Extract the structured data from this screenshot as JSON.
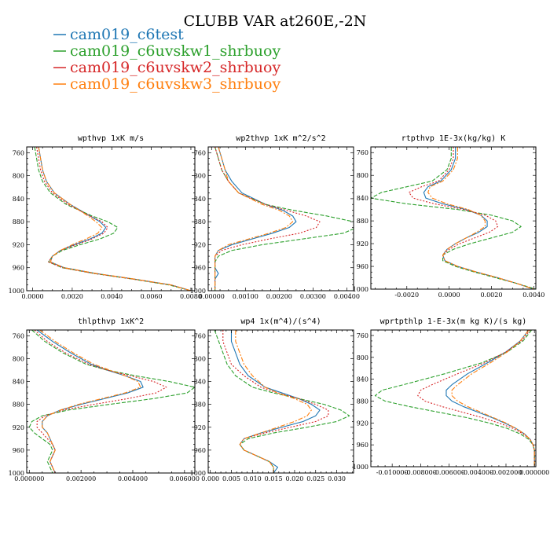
{
  "title": "CLUBB VAR at260E,-2N",
  "colors": {
    "cam019_c6test": "#1f77b4",
    "cam019_c6uvskw1_shrbuoy": "#2ca02c",
    "cam019_c6uvskw2_shrbuoy": "#d62728",
    "cam019_c6uvskw3_shrbuoy": "#ff7f0e"
  },
  "legend": [
    {
      "name": "cam019_c6test",
      "color": "#1f77b4",
      "dash": "solid"
    },
    {
      "name": "cam019_c6uvskw1_shrbuoy",
      "color": "#2ca02c",
      "dash": "dashed"
    },
    {
      "name": "cam019_c6uvskw2_shrbuoy",
      "color": "#d62728",
      "dash": "dotted"
    },
    {
      "name": "cam019_c6uvskw3_shrbuoy",
      "color": "#ff7f0e",
      "dash": "dashdot"
    }
  ],
  "chart_data": [
    {
      "type": "line",
      "title": "wpthvp  1xK m/s",
      "xlim": [
        -0.0003,
        0.0082
      ],
      "ylim": [
        750,
        1000
      ],
      "y_inverted": true,
      "xticks": [
        0,
        0.002,
        0.004,
        0.006,
        0.008
      ],
      "xtick_labels": [
        "0.0000",
        "0.0020",
        "0.0040",
        "0.0060",
        "0.0080"
      ],
      "yticks": [
        760,
        800,
        840,
        880,
        920,
        960,
        1000
      ],
      "ytick_labels": [
        "760",
        "800",
        "840",
        "880",
        "920",
        "960",
        "1000"
      ],
      "y": [
        750,
        770,
        790,
        810,
        830,
        850,
        870,
        880,
        890,
        900,
        910,
        920,
        930,
        940,
        950,
        960,
        970,
        980,
        990,
        1000
      ],
      "series": [
        {
          "name": "cam019_c6test",
          "x": [
            0.0003,
            0.0004,
            0.0005,
            0.0007,
            0.0011,
            0.0019,
            0.0029,
            0.0034,
            0.0037,
            0.0035,
            0.0029,
            0.0021,
            0.0014,
            0.001,
            0.0009,
            0.0016,
            0.0032,
            0.0052,
            0.007,
            0.008
          ]
        },
        {
          "name": "cam019_c6uvskw1_shrbuoy",
          "x": [
            0.0001,
            0.0002,
            0.0003,
            0.0005,
            0.0009,
            0.0017,
            0.003,
            0.0038,
            0.0043,
            0.0041,
            0.0034,
            0.0024,
            0.0015,
            0.001,
            0.0008,
            0.0015,
            0.0031,
            0.0051,
            0.0069,
            0.008
          ]
        },
        {
          "name": "cam019_c6uvskw2_shrbuoy",
          "x": [
            0.0002,
            0.0003,
            0.0004,
            0.0006,
            0.001,
            0.0018,
            0.0029,
            0.0035,
            0.0038,
            0.0036,
            0.003,
            0.0022,
            0.0014,
            0.001,
            0.0008,
            0.0015,
            0.0031,
            0.0051,
            0.007,
            0.008
          ]
        },
        {
          "name": "cam019_c6uvskw3_shrbuoy",
          "x": [
            0.0003,
            0.0004,
            0.0005,
            0.0007,
            0.0011,
            0.0019,
            0.0028,
            0.0032,
            0.0035,
            0.0033,
            0.0027,
            0.002,
            0.0014,
            0.001,
            0.0009,
            0.0016,
            0.0032,
            0.0052,
            0.007,
            0.008
          ]
        }
      ]
    },
    {
      "type": "line",
      "title": "wp2thvp  1xK m^2/s^2",
      "xlim": [
        -0.0001,
        0.0042
      ],
      "ylim": [
        750,
        1000
      ],
      "y_inverted": true,
      "xticks": [
        0,
        0.001,
        0.002,
        0.003,
        0.004
      ],
      "xtick_labels": [
        "0.00000",
        "0.00100",
        "0.00200",
        "0.00300",
        "0.00400"
      ],
      "yticks": [
        760,
        800,
        840,
        880,
        920,
        960,
        1000
      ],
      "ytick_labels": [
        "760",
        "800",
        "840",
        "880",
        "920",
        "960",
        "1000"
      ],
      "y": [
        750,
        770,
        790,
        810,
        830,
        850,
        860,
        870,
        880,
        890,
        900,
        910,
        920,
        930,
        940,
        950,
        960,
        970,
        980,
        990,
        1000
      ],
      "series": [
        {
          "name": "cam019_c6test",
          "x": [
            0.0002,
            0.0003,
            0.0004,
            0.0006,
            0.0009,
            0.0016,
            0.0021,
            0.0024,
            0.0025,
            0.0023,
            0.0018,
            0.0012,
            0.0006,
            0.0002,
            0.0001,
            0.0001,
            0.0001,
            0.0002,
            0.0001,
            0.0001,
            0.0001
          ]
        },
        {
          "name": "cam019_c6uvskw1_shrbuoy",
          "x": [
            0.0001,
            0.0002,
            0.0003,
            0.0005,
            0.0008,
            0.0016,
            0.0024,
            0.0034,
            0.0042,
            0.0043,
            0.0039,
            0.0027,
            0.0015,
            0.0006,
            0.0002,
            0.0001,
            0.0001,
            0.0001,
            0.0001,
            0.0001,
            0.0001
          ]
        },
        {
          "name": "cam019_c6uvskw2_shrbuoy",
          "x": [
            0.0001,
            0.0002,
            0.0003,
            0.0005,
            0.0008,
            0.0016,
            0.0022,
            0.0028,
            0.0032,
            0.0031,
            0.0026,
            0.0017,
            0.0009,
            0.0003,
            0.0001,
            0.0001,
            0.0001,
            0.0001,
            0.0001,
            0.0001,
            0.0001
          ]
        },
        {
          "name": "cam019_c6uvskw3_shrbuoy",
          "x": [
            0.0002,
            0.0003,
            0.0004,
            0.0005,
            0.0008,
            0.0015,
            0.002,
            0.0023,
            0.0024,
            0.0022,
            0.0017,
            0.0011,
            0.0005,
            0.0002,
            0.0001,
            0.0001,
            0.0001,
            0.0001,
            0.0001,
            0.0001,
            0.0001
          ]
        }
      ]
    },
    {
      "type": "line",
      "title": "rtpthvp  1E-3x(kg/kg) K",
      "xlim": [
        -0.0037,
        0.0041
      ],
      "ylim": [
        750,
        1000
      ],
      "y_inverted": true,
      "xticks": [
        -0.002,
        0,
        0.002,
        0.004
      ],
      "xtick_labels": [
        "-0.0020",
        "0.0000",
        "0.0020",
        "0.0040"
      ],
      "yticks": [
        760,
        800,
        840,
        880,
        920,
        960,
        1000
      ],
      "ytick_labels": [
        "760",
        "800",
        "840",
        "880",
        "920",
        "960",
        "1000"
      ],
      "y": [
        750,
        770,
        790,
        810,
        820,
        830,
        840,
        850,
        860,
        870,
        880,
        890,
        900,
        910,
        920,
        930,
        940,
        950,
        960,
        970,
        980,
        990,
        1000
      ],
      "series": [
        {
          "name": "cam019_c6test",
          "x": [
            0.0003,
            0.0003,
            0.0001,
            -0.0004,
            -0.001,
            -0.0012,
            -0.0011,
            -0.0003,
            0.0008,
            0.0015,
            0.0018,
            0.0018,
            0.0014,
            0.0008,
            0.0003,
            -0.0001,
            -0.0003,
            -0.0002,
            0.0004,
            0.0013,
            0.0023,
            0.0032,
            0.004
          ]
        },
        {
          "name": "cam019_c6uvskw1_shrbuoy",
          "x": [
            0.0001,
            0.0001,
            -0.0001,
            -0.0008,
            -0.002,
            -0.0032,
            -0.0037,
            -0.002,
            0.0004,
            0.002,
            0.003,
            0.0034,
            0.003,
            0.002,
            0.001,
            0.0002,
            -0.0003,
            -0.0003,
            0.0003,
            0.0012,
            0.0022,
            0.0032,
            0.0041
          ]
        },
        {
          "name": "cam019_c6uvskw2_shrbuoy",
          "x": [
            0.0002,
            0.0002,
            0.0,
            -0.0005,
            -0.0013,
            -0.0019,
            -0.0017,
            -0.0007,
            0.0007,
            0.0017,
            0.0022,
            0.0023,
            0.0019,
            0.0012,
            0.0005,
            0.0,
            -0.0003,
            -0.0002,
            0.0004,
            0.0013,
            0.0023,
            0.0032,
            0.004
          ]
        },
        {
          "name": "cam019_c6uvskw3_shrbuoy",
          "x": [
            0.0004,
            0.0004,
            0.0002,
            -0.0003,
            -0.0009,
            -0.001,
            -0.0008,
            -0.0001,
            0.0009,
            0.0015,
            0.0017,
            0.0017,
            0.0013,
            0.0008,
            0.0003,
            -0.0001,
            -0.0003,
            -0.0002,
            0.0004,
            0.0013,
            0.0023,
            0.0032,
            0.004
          ]
        }
      ]
    },
    {
      "type": "line",
      "title": "thlpthvp  1xK^2",
      "xlim": [
        -0.0001,
        0.0064
      ],
      "ylim": [
        750,
        1000
      ],
      "y_inverted": true,
      "xticks": [
        0,
        0.002,
        0.004,
        0.006
      ],
      "xtick_labels": [
        "0.000000",
        "0.002000",
        "0.004000",
        "0.006000"
      ],
      "yticks": [
        760,
        800,
        840,
        880,
        920,
        960,
        1000
      ],
      "ytick_labels": [
        "760",
        "800",
        "840",
        "880",
        "920",
        "960",
        "1000"
      ],
      "y": [
        750,
        770,
        790,
        810,
        820,
        830,
        840,
        850,
        860,
        870,
        880,
        890,
        900,
        910,
        920,
        930,
        940,
        950,
        960,
        970,
        980,
        990,
        1000
      ],
      "series": [
        {
          "name": "cam019_c6test",
          "x": [
            0.0003,
            0.0009,
            0.0016,
            0.0024,
            0.003,
            0.0037,
            0.0043,
            0.0044,
            0.0038,
            0.0029,
            0.002,
            0.0012,
            0.0007,
            0.0005,
            0.0005,
            0.0007,
            0.0008,
            0.0009,
            0.001,
            0.0009,
            0.0008,
            0.0009,
            0.001
          ]
        },
        {
          "name": "cam019_c6uvskw1_shrbuoy",
          "x": [
            0.0001,
            0.0006,
            0.0013,
            0.0022,
            0.003,
            0.0041,
            0.0054,
            0.0064,
            0.0061,
            0.0048,
            0.0031,
            0.0015,
            0.0005,
            0.0001,
            0.0,
            0.0002,
            0.0005,
            0.0008,
            0.0009,
            0.0008,
            0.0007,
            0.0008,
            0.0009
          ]
        },
        {
          "name": "cam019_c6uvskw2_shrbuoy",
          "x": [
            0.0002,
            0.0007,
            0.0014,
            0.0023,
            0.003,
            0.0039,
            0.0048,
            0.0053,
            0.0049,
            0.0038,
            0.0025,
            0.0013,
            0.0006,
            0.0003,
            0.0003,
            0.0005,
            0.0007,
            0.0009,
            0.001,
            0.0009,
            0.0008,
            0.0009,
            0.001
          ]
        },
        {
          "name": "cam019_c6uvskw3_shrbuoy",
          "x": [
            0.0004,
            0.001,
            0.0017,
            0.0025,
            0.0031,
            0.0037,
            0.0042,
            0.0043,
            0.0037,
            0.0028,
            0.0019,
            0.0012,
            0.0007,
            0.0005,
            0.0005,
            0.0007,
            0.0008,
            0.0009,
            0.001,
            0.0009,
            0.0008,
            0.0009,
            0.001
          ]
        }
      ]
    },
    {
      "type": "line",
      "title": "wp4  1x(m^4)/(s^4)",
      "xlim": [
        -0.0005,
        0.034
      ],
      "ylim": [
        750,
        1000
      ],
      "y_inverted": true,
      "xticks": [
        0,
        0.005,
        0.01,
        0.015,
        0.02,
        0.025,
        0.03
      ],
      "xtick_labels": [
        "0.000",
        "0.005",
        "0.010",
        "0.015",
        "0.020",
        "0.025",
        "0.030"
      ],
      "yticks": [
        760,
        800,
        840,
        880,
        920,
        960,
        1000
      ],
      "ytick_labels": [
        "760",
        "800",
        "840",
        "880",
        "920",
        "960",
        "1000"
      ],
      "y": [
        750,
        770,
        790,
        810,
        830,
        850,
        860,
        870,
        880,
        890,
        900,
        910,
        920,
        930,
        940,
        950,
        960,
        970,
        980,
        990,
        1000
      ],
      "series": [
        {
          "name": "cam019_c6test",
          "x": [
            0.005,
            0.005,
            0.006,
            0.007,
            0.009,
            0.013,
            0.017,
            0.021,
            0.024,
            0.026,
            0.025,
            0.022,
            0.017,
            0.012,
            0.008,
            0.007,
            0.008,
            0.011,
            0.014,
            0.016,
            0.015
          ]
        },
        {
          "name": "cam019_c6uvskw1_shrbuoy",
          "x": [
            0.001,
            0.002,
            0.003,
            0.004,
            0.006,
            0.01,
            0.015,
            0.021,
            0.027,
            0.031,
            0.033,
            0.03,
            0.023,
            0.015,
            0.009,
            0.007,
            0.008,
            0.011,
            0.014,
            0.015,
            0.015
          ]
        },
        {
          "name": "cam019_c6uvskw2_shrbuoy",
          "x": [
            0.003,
            0.003,
            0.004,
            0.005,
            0.008,
            0.012,
            0.016,
            0.021,
            0.025,
            0.028,
            0.028,
            0.025,
            0.019,
            0.013,
            0.008,
            0.007,
            0.008,
            0.011,
            0.014,
            0.015,
            0.015
          ]
        },
        {
          "name": "cam019_c6uvskw3_shrbuoy",
          "x": [
            0.006,
            0.006,
            0.007,
            0.008,
            0.01,
            0.013,
            0.016,
            0.02,
            0.023,
            0.024,
            0.023,
            0.02,
            0.016,
            0.012,
            0.008,
            0.007,
            0.008,
            0.011,
            0.014,
            0.015,
            0.015
          ]
        }
      ]
    },
    {
      "type": "line",
      "title": "wprtpthlp  1-E-3x(m kg K)/(s kg)",
      "xlim": [
        -0.0115,
        0.0001
      ],
      "ylim": [
        750,
        1000
      ],
      "y_inverted": true,
      "xticks": [
        -0.01,
        -0.008,
        -0.006,
        -0.004,
        -0.002,
        0
      ],
      "xtick_labels": [
        "-0.010000",
        "-0.008000",
        "-0.006000",
        "-0.004000",
        "-0.002000",
        "0.000000"
      ],
      "yticks": [
        760,
        800,
        840,
        880,
        920,
        960,
        1000
      ],
      "ytick_labels": [
        "760",
        "800",
        "840",
        "880",
        "920",
        "960",
        "1000"
      ],
      "y": [
        750,
        770,
        790,
        810,
        830,
        850,
        860,
        870,
        880,
        890,
        900,
        910,
        920,
        930,
        940,
        950,
        960,
        970,
        980,
        990,
        1000
      ],
      "series": [
        {
          "name": "cam019_c6test",
          "x": [
            -0.0004,
            -0.001,
            -0.002,
            -0.0033,
            -0.0047,
            -0.0058,
            -0.0062,
            -0.0062,
            -0.0058,
            -0.005,
            -0.004,
            -0.003,
            -0.0021,
            -0.0013,
            -0.0007,
            -0.0003,
            -0.0001,
            0.0,
            0.0,
            0.0,
            0.0
          ]
        },
        {
          "name": "cam019_c6uvskw1_shrbuoy",
          "x": [
            -0.0002,
            -0.0008,
            -0.0019,
            -0.0037,
            -0.0063,
            -0.0092,
            -0.0107,
            -0.0112,
            -0.0105,
            -0.0088,
            -0.0068,
            -0.0048,
            -0.0032,
            -0.0019,
            -0.001,
            -0.0004,
            -0.0001,
            0.0,
            0.0,
            0.0,
            0.0
          ]
        },
        {
          "name": "cam019_c6uvskw2_shrbuoy",
          "x": [
            -0.0003,
            -0.0009,
            -0.002,
            -0.0035,
            -0.0054,
            -0.0072,
            -0.008,
            -0.0082,
            -0.0077,
            -0.0065,
            -0.0051,
            -0.0037,
            -0.0025,
            -0.0015,
            -0.0008,
            -0.0003,
            -0.0001,
            0.0,
            0.0,
            0.0,
            0.0
          ]
        },
        {
          "name": "cam019_c6uvskw3_shrbuoy",
          "x": [
            -0.0004,
            -0.001,
            -0.0019,
            -0.0031,
            -0.0044,
            -0.0054,
            -0.0058,
            -0.0058,
            -0.0054,
            -0.0047,
            -0.0038,
            -0.0029,
            -0.002,
            -0.0013,
            -0.0007,
            -0.0003,
            -0.0001,
            0.0,
            0.0,
            0.0,
            0.0
          ]
        }
      ]
    }
  ]
}
